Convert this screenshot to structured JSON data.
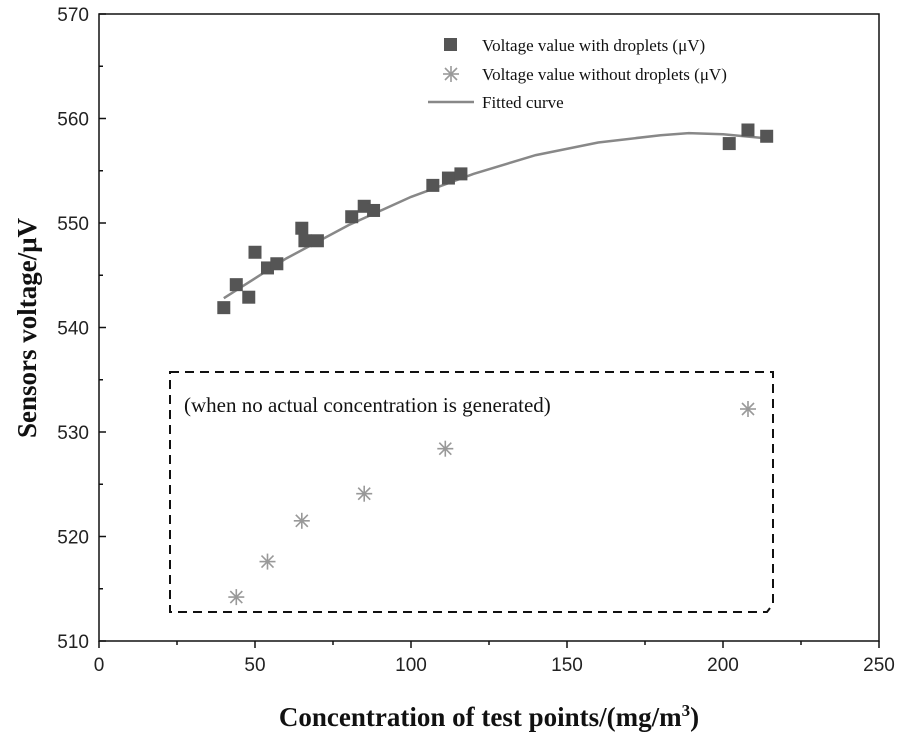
{
  "chart_data": {
    "type": "scatter",
    "title": "",
    "xlabel_main": "Concentration of test points/(mg/m",
    "xlabel_sup": "3",
    "xlabel_end": ")",
    "ylabel": "Sensors voltage/μV",
    "xlim": [
      0,
      250
    ],
    "ylim": [
      510,
      570
    ],
    "x_ticks": [
      0,
      50,
      100,
      150,
      200,
      250
    ],
    "y_ticks": [
      510,
      520,
      530,
      540,
      550,
      560,
      570
    ],
    "x_tick_labels": [
      "0",
      "50",
      "100",
      "150",
      "200",
      "250"
    ],
    "y_tick_labels": [
      "510",
      "520",
      "530",
      "540",
      "550",
      "560",
      "570"
    ],
    "grid": false,
    "legend_position": "top-right",
    "series": [
      {
        "name": "Voltage value with droplets (μV)",
        "marker": "square",
        "color": "#555555",
        "points": [
          [
            40,
            541.9
          ],
          [
            44,
            544.1
          ],
          [
            48,
            542.9
          ],
          [
            50,
            547.2
          ],
          [
            54,
            545.7
          ],
          [
            57,
            546.1
          ],
          [
            65,
            549.5
          ],
          [
            66,
            548.3
          ],
          [
            70,
            548.3
          ],
          [
            81,
            550.6
          ],
          [
            85,
            551.6
          ],
          [
            88,
            551.2
          ],
          [
            107,
            553.6
          ],
          [
            112,
            554.3
          ],
          [
            116,
            554.7
          ],
          [
            202,
            557.6
          ],
          [
            208,
            558.9
          ],
          [
            214,
            558.3
          ]
        ]
      },
      {
        "name": "Voltage value without droplets  (μV)",
        "marker": "asterisk",
        "color": "#999999",
        "points": [
          [
            44,
            514.2
          ],
          [
            54,
            517.6
          ],
          [
            65,
            521.5
          ],
          [
            85,
            524.1
          ],
          [
            111,
            528.4
          ],
          [
            208,
            532.2
          ]
        ]
      },
      {
        "name": "Fitted curve",
        "marker": "line",
        "color": "#888888",
        "fit_points": [
          [
            40,
            542.8
          ],
          [
            60,
            546.6
          ],
          [
            80,
            549.8
          ],
          [
            100,
            552.5
          ],
          [
            120,
            554.7
          ],
          [
            140,
            556.5
          ],
          [
            160,
            557.7
          ],
          [
            180,
            558.4
          ],
          [
            189,
            558.6
          ],
          [
            200,
            558.5
          ],
          [
            214,
            558.1
          ]
        ]
      }
    ],
    "annotation": {
      "text": "(when no actual concentration is generated)",
      "style": "dashed-box"
    }
  }
}
